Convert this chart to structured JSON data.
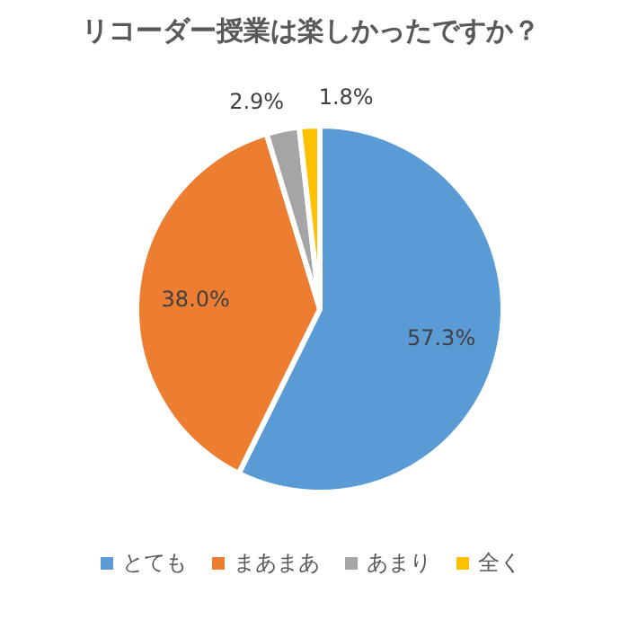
{
  "chart_data": {
    "type": "pie",
    "title": "リコーダー授業は楽しかったですか？",
    "categories": [
      "とても",
      "まあまあ",
      "あまり",
      "全く"
    ],
    "values": [
      57.3,
      38.0,
      2.9,
      1.8
    ],
    "colors": [
      "#5b9bd5",
      "#ed7d31",
      "#a5a5a5",
      "#ffc000"
    ],
    "value_labels": [
      "57.3%",
      "38.0%",
      "2.9%",
      "1.8%"
    ],
    "legend": "bottom"
  }
}
